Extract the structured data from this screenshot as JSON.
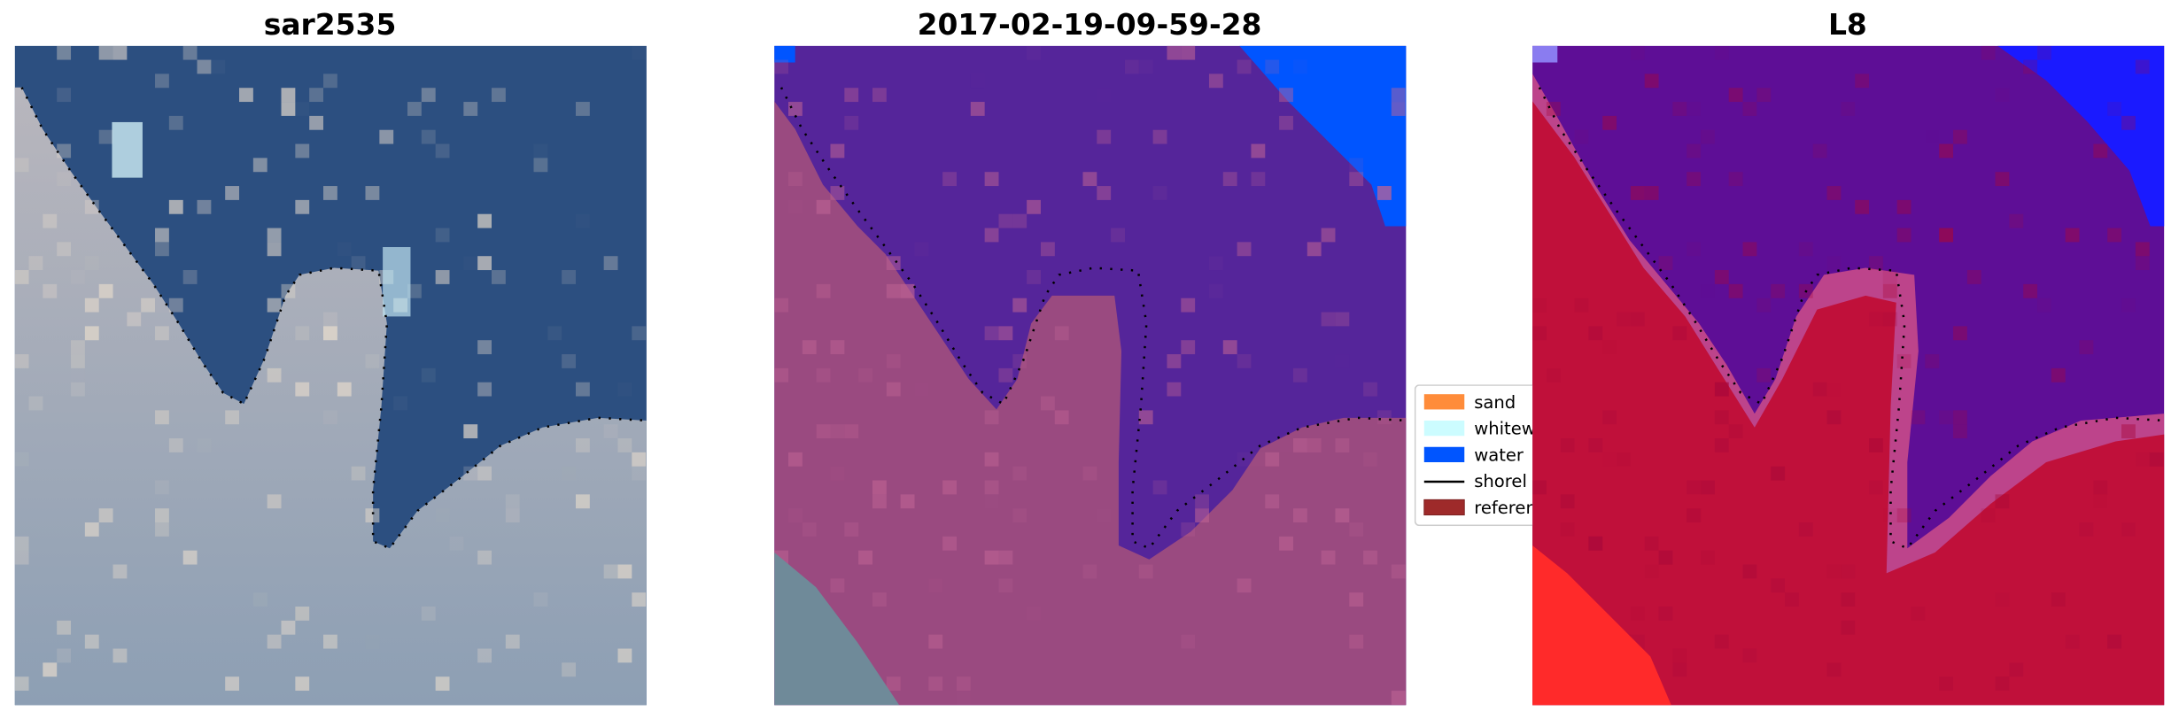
{
  "chart_data": [
    {
      "type": "image",
      "title": "sar2535",
      "colors": {
        "water": "#2c4f80",
        "land": "#a4aab6"
      }
    },
    {
      "type": "image",
      "title": "2017-02-19-09-59-28",
      "colors": {
        "water": "#55259a",
        "land": "#9a4a80",
        "water_class": "#0055ff"
      }
    },
    {
      "type": "image",
      "title": "L8",
      "colors": {
        "water": "#5e0e96",
        "land": "#c0103a",
        "water_class": "#1a1aff",
        "corner": "#ff2a2a"
      }
    }
  ],
  "legend": {
    "placement": "center, between panels 2 and 3 (clipped)",
    "entries": [
      {
        "label": "sand",
        "color": "#ff8c3a",
        "kind": "patch"
      },
      {
        "label": "whitew",
        "color": "#ccfcff",
        "kind": "patch"
      },
      {
        "label": "water",
        "color": "#0055ff",
        "kind": "patch"
      },
      {
        "label": "shorel",
        "color": "#000000",
        "kind": "line"
      },
      {
        "label": "referen",
        "color": "#9e2a2a",
        "kind": "patch"
      }
    ]
  }
}
